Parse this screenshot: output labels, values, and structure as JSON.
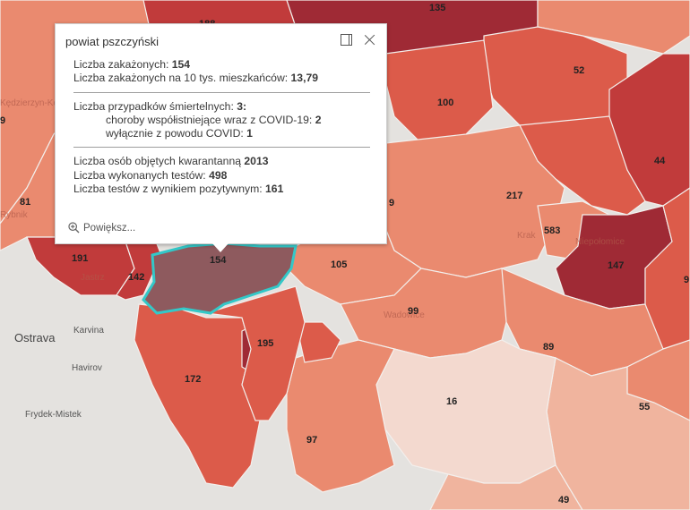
{
  "popup": {
    "title": "powiat pszczyński",
    "infections_label": "Liczba zakażonych: ",
    "infections_value": "154",
    "per10k_label": "Liczba zakażonych na 10 tys. mieszkańców: ",
    "per10k_value": "13,79",
    "deaths_label": "Liczba przypadków śmiertelnych: ",
    "deaths_value": "3:",
    "comorbid_label": "choroby współistniejące wraz z COVID-19: ",
    "comorbid_value": "2",
    "covid_only_label": "wyłącznie z powodu COVID: ",
    "covid_only_value": "1",
    "quarantine_label": "Liczba osób objętych kwarantanną ",
    "quarantine_value": "2013",
    "tests_label": "Liczba wykonanych testów: ",
    "tests_value": "498",
    "positive_label": "Liczba testów z wynikiem pozytywnym: ",
    "positive_value": "161",
    "zoom_label": "Powiększ..."
  },
  "map": {
    "places": [
      "Ostrava",
      "Karvina",
      "Havirov",
      "Frydek-Mistek",
      "Krak",
      "Jastrz",
      "Niepołomice",
      "Kędzierzyn-Koźle",
      "Rybnik",
      "Wadowice"
    ],
    "labels": [
      "135",
      "188",
      "52",
      "100",
      "44",
      "217",
      "583",
      "147",
      "81",
      "191",
      "142",
      "154",
      "105",
      "9",
      "99",
      "195",
      "89",
      "172",
      "16",
      "55",
      "97",
      "49",
      "9",
      "9"
    ],
    "colors": {
      "light_grey": "#e4e2df",
      "very_light": "#f3d9cf",
      "light": "#f0b49e",
      "medium": "#ea8a6f",
      "dark": "#dc5b4a",
      "darker": "#c13b3b",
      "darkest": "#9f2a35",
      "selected": "#8e5a5e",
      "highlight": "#33c8c8"
    }
  }
}
